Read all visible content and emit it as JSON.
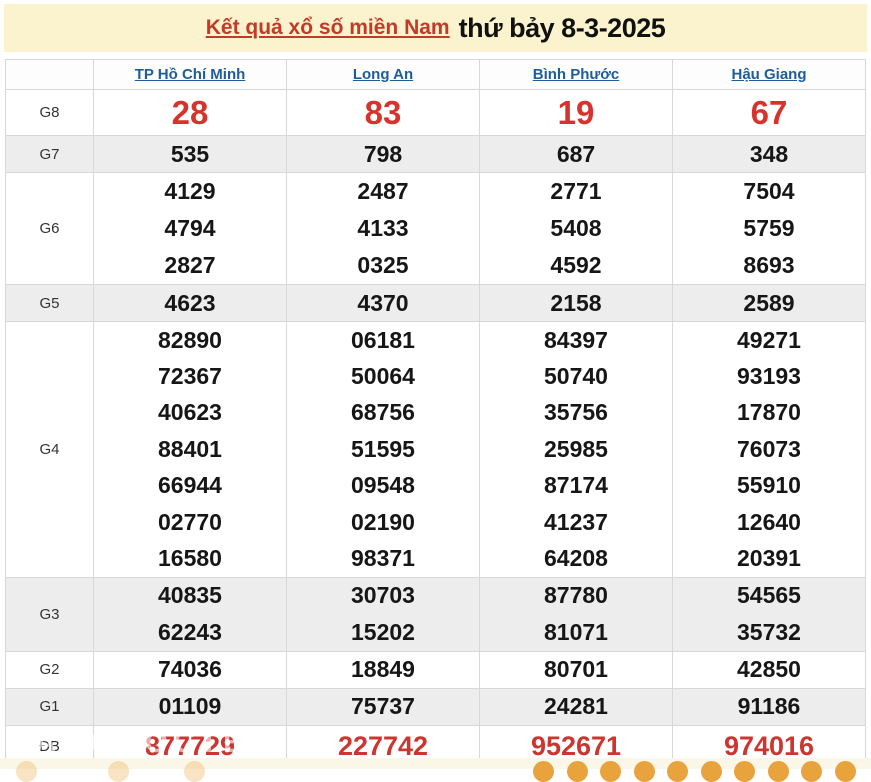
{
  "banner": {
    "title_link": "Kết quả xổ số miền Nam",
    "title_date": "thứ bảy 8-3-2025"
  },
  "table": {
    "corner_label": "",
    "columns": [
      "TP Hồ Chí Minh",
      "Long An",
      "Bình Phước",
      "Hậu Giang"
    ],
    "rows": [
      {
        "label": "G8",
        "style": "big-red",
        "alt": false,
        "values": [
          [
            "28"
          ],
          [
            "83"
          ],
          [
            "19"
          ],
          [
            "67"
          ]
        ]
      },
      {
        "label": "G7",
        "style": "normal",
        "alt": true,
        "values": [
          [
            "535"
          ],
          [
            "798"
          ],
          [
            "687"
          ],
          [
            "348"
          ]
        ]
      },
      {
        "label": "G6",
        "style": "normal",
        "alt": false,
        "values": [
          [
            "4129",
            "4794",
            "2827"
          ],
          [
            "2487",
            "4133",
            "0325"
          ],
          [
            "2771",
            "5408",
            "4592"
          ],
          [
            "7504",
            "5759",
            "8693"
          ]
        ]
      },
      {
        "label": "G5",
        "style": "normal",
        "alt": true,
        "values": [
          [
            "4623"
          ],
          [
            "4370"
          ],
          [
            "2158"
          ],
          [
            "2589"
          ]
        ]
      },
      {
        "label": "G4",
        "style": "normal",
        "alt": false,
        "values": [
          [
            "82890",
            "72367",
            "40623",
            "88401",
            "66944",
            "02770",
            "16580"
          ],
          [
            "06181",
            "50064",
            "68756",
            "51595",
            "09548",
            "02190",
            "98371"
          ],
          [
            "84397",
            "50740",
            "35756",
            "25985",
            "87174",
            "41237",
            "64208"
          ],
          [
            "49271",
            "93193",
            "17870",
            "76073",
            "55910",
            "12640",
            "20391"
          ]
        ]
      },
      {
        "label": "G3",
        "style": "normal",
        "alt": true,
        "values": [
          [
            "40835",
            "62243"
          ],
          [
            "30703",
            "15202"
          ],
          [
            "87780",
            "81071"
          ],
          [
            "54565",
            "35732"
          ]
        ]
      },
      {
        "label": "G2",
        "style": "normal",
        "alt": false,
        "values": [
          [
            "74036"
          ],
          [
            "18849"
          ],
          [
            "80701"
          ],
          [
            "42850"
          ]
        ]
      },
      {
        "label": "G1",
        "style": "normal",
        "alt": true,
        "values": [
          [
            "01109"
          ],
          [
            "75737"
          ],
          [
            "24281"
          ],
          [
            "91186"
          ]
        ]
      },
      {
        "label": "ĐB",
        "style": "red",
        "alt": false,
        "values": [
          [
            "877729"
          ],
          [
            "227742"
          ],
          [
            "952671"
          ],
          [
            "974016"
          ]
        ]
      }
    ]
  },
  "watermark": "BAOQUOCTE.VN",
  "footer_balls": {
    "faint_left_positions": [
      16,
      108,
      184
    ],
    "bright_start": 533,
    "bright_spacing": 33.5,
    "bright_count": 10
  },
  "colors": {
    "banner_bg": "#FAF3CD",
    "accent_red": "#D6332C",
    "link_red": "#C43A28",
    "header_blue": "#1E5C9A",
    "row_alt_bg": "#EDEDED",
    "ball_orange": "#E8A33C"
  }
}
